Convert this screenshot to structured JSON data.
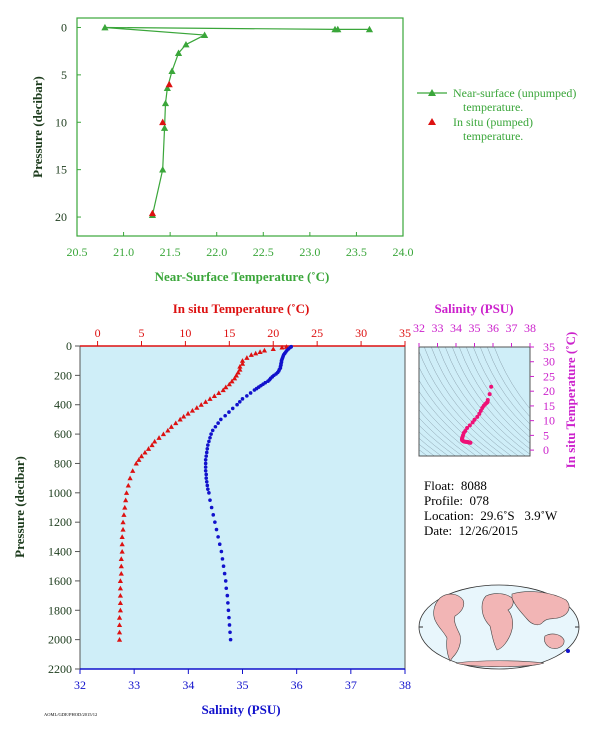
{
  "top_chart": {
    "xlabel": "Near-Surface Temperature (˚C)",
    "ylabel": "Pressure (decibar)",
    "legend": {
      "unpumped_line1": "Near-surface (unpumped)",
      "unpumped_line2": "temperature.",
      "pumped_line1": "In situ (pumped)",
      "pumped_line2": "temperature."
    },
    "color_unpumped": "#3aa63a",
    "color_pumped": "#dd1111"
  },
  "main_chart": {
    "top_axis_label": "In situ Temperature (˚C)",
    "bottom_axis_label": "Salinity (PSU)",
    "ylabel": "Pressure (decibar)",
    "color_temperature": "#dd1111",
    "color_salinity": "#1111cc"
  },
  "ts_chart": {
    "top_axis_label": "Salinity (PSU)",
    "right_axis_label": "In situ Temperature (˚C)",
    "color": "#cc22cc"
  },
  "info": {
    "float": "Float:  8088",
    "profile": "Profile:  078",
    "location": "Location:  29.6˚S   3.9˚W",
    "date": "Date:  12/26/2015"
  },
  "corner_code": "AOML/GDE/PHOD/2015/12",
  "chart_data": [
    {
      "type": "line",
      "name": "near_surface",
      "xlabel": "Near-Surface Temperature (˚C)",
      "ylabel": "Pressure (decibar)",
      "xlim": [
        20.5,
        24.0
      ],
      "ylim": [
        22,
        -1
      ],
      "xticks": [
        20.5,
        21.0,
        21.5,
        22.0,
        22.5,
        23.0,
        23.5,
        24.0
      ],
      "yticks": [
        0,
        5,
        10,
        15,
        20
      ],
      "series": [
        {
          "name": "Near-surface (unpumped) temperature.",
          "marker": "triangle",
          "x": [
            23.64,
            23.3,
            23.27,
            20.8,
            21.87,
            21.67,
            21.59,
            21.52,
            21.47,
            21.45,
            21.44,
            21.42,
            21.31
          ],
          "y": [
            0.2,
            0.2,
            0.2,
            0.0,
            0.8,
            1.8,
            2.7,
            4.6,
            6.4,
            8.0,
            10.6,
            15.0,
            19.8
          ]
        },
        {
          "name": "In situ (pumped) temperature.",
          "marker": "triangle",
          "x": [
            21.49,
            21.42,
            21.31
          ],
          "y": [
            6.0,
            10.0,
            19.6
          ]
        }
      ]
    },
    {
      "type": "line",
      "name": "profile",
      "ylabel": "Pressure (decibar)",
      "ylim": [
        2200,
        0
      ],
      "yticks": [
        0,
        200,
        400,
        600,
        800,
        1000,
        1200,
        1400,
        1600,
        1800,
        2000,
        2200
      ],
      "temperature_axis": {
        "label": "In situ Temperature (˚C)",
        "lim": [
          -2,
          35
        ],
        "ticks": [
          0,
          5,
          10,
          15,
          20,
          25,
          30,
          35
        ]
      },
      "salinity_axis": {
        "label": "Salinity (PSU)",
        "lim": [
          32,
          38
        ],
        "ticks": [
          32,
          33,
          34,
          35,
          36,
          37,
          38
        ]
      },
      "series": [
        {
          "name": "In situ Temperature",
          "marker": "triangle",
          "pressure": [
            5,
            10,
            20,
            30,
            40,
            50,
            60,
            80,
            100,
            120,
            140,
            160,
            180,
            200,
            220,
            240,
            260,
            280,
            300,
            320,
            340,
            360,
            380,
            400,
            420,
            440,
            460,
            480,
            500,
            525,
            550,
            575,
            600,
            625,
            650,
            675,
            700,
            725,
            750,
            775,
            800,
            850,
            900,
            950,
            1000,
            1050,
            1100,
            1150,
            1200,
            1250,
            1300,
            1350,
            1400,
            1450,
            1500,
            1550,
            1600,
            1650,
            1700,
            1750,
            1800,
            1850,
            1900,
            1950,
            2000
          ],
          "values": [
            21.5,
            21.0,
            20.0,
            19.0,
            18.5,
            18.0,
            17.5,
            17.0,
            16.5,
            16.5,
            16.2,
            16.2,
            16.0,
            15.8,
            15.6,
            15.3,
            15.0,
            14.6,
            14.3,
            13.8,
            13.3,
            12.8,
            12.3,
            11.8,
            11.3,
            10.8,
            10.3,
            9.8,
            9.4,
            8.9,
            8.4,
            8.0,
            7.5,
            7.0,
            6.5,
            6.2,
            5.8,
            5.4,
            5.0,
            4.7,
            4.4,
            4.0,
            3.7,
            3.5,
            3.3,
            3.2,
            3.1,
            3.0,
            2.9,
            2.9,
            2.8,
            2.8,
            2.8,
            2.7,
            2.7,
            2.7,
            2.6,
            2.6,
            2.6,
            2.6,
            2.6,
            2.5,
            2.5,
            2.5,
            2.5
          ]
        },
        {
          "name": "Salinity",
          "marker": "dot",
          "pressure": [
            5,
            10,
            20,
            30,
            40,
            50,
            60,
            70,
            80,
            90,
            100,
            110,
            120,
            130,
            140,
            150,
            160,
            170,
            180,
            190,
            200,
            210,
            220,
            230,
            240,
            250,
            260,
            270,
            280,
            290,
            300,
            320,
            340,
            360,
            380,
            400,
            425,
            450,
            475,
            500,
            525,
            550,
            575,
            600,
            625,
            650,
            675,
            700,
            725,
            750,
            775,
            800,
            825,
            850,
            875,
            900,
            925,
            950,
            975,
            1000,
            1050,
            1100,
            1150,
            1200,
            1250,
            1300,
            1350,
            1400,
            1450,
            1500,
            1550,
            1600,
            1650,
            1700,
            1750,
            1800,
            1850,
            1900,
            1950,
            2000
          ],
          "values": [
            35.9,
            35.88,
            35.85,
            35.82,
            35.8,
            35.78,
            35.76,
            35.75,
            35.74,
            35.73,
            35.72,
            35.72,
            35.71,
            35.71,
            35.7,
            35.7,
            35.68,
            35.67,
            35.65,
            35.62,
            35.58,
            35.55,
            35.52,
            35.5,
            35.47,
            35.42,
            35.38,
            35.34,
            35.3,
            35.26,
            35.22,
            35.15,
            35.08,
            35.0,
            34.95,
            34.9,
            34.82,
            34.75,
            34.68,
            34.6,
            34.55,
            34.5,
            34.45,
            34.42,
            34.4,
            34.38,
            34.36,
            34.35,
            34.34,
            34.33,
            34.32,
            34.32,
            34.32,
            34.32,
            34.33,
            34.33,
            34.34,
            34.35,
            34.36,
            34.38,
            34.4,
            34.43,
            34.46,
            34.49,
            34.52,
            34.55,
            34.58,
            34.61,
            34.63,
            34.65,
            34.67,
            34.69,
            34.7,
            34.72,
            34.73,
            34.74,
            34.75,
            34.76,
            34.77,
            34.78
          ]
        }
      ]
    },
    {
      "type": "scatter",
      "name": "ts_diagram",
      "xlabel": "Salinity (PSU)",
      "ylabel": "In situ Temperature (˚C)",
      "xlim": [
        32,
        38
      ],
      "ylim": [
        -2,
        35
      ],
      "xticks": [
        32,
        33,
        34,
        35,
        36,
        37,
        38
      ],
      "yticks": [
        0,
        5,
        10,
        15,
        20,
        25,
        30,
        35
      ],
      "x": [
        35.9,
        35.82,
        35.72,
        35.7,
        35.65,
        35.58,
        35.5,
        35.42,
        35.34,
        35.26,
        35.15,
        35.0,
        34.9,
        34.75,
        34.6,
        34.5,
        34.42,
        34.38,
        34.35,
        34.33,
        34.32,
        34.33,
        34.36,
        34.4,
        34.46,
        34.52,
        34.58,
        34.63,
        34.67,
        34.7,
        34.73,
        34.76,
        34.78
      ],
      "y": [
        21.5,
        19.0,
        17.0,
        16.3,
        16.0,
        15.6,
        15.0,
        14.3,
        13.3,
        12.3,
        11.3,
        10.3,
        9.4,
        8.4,
        7.5,
        6.5,
        5.8,
        5.0,
        4.4,
        4.0,
        3.7,
        3.4,
        3.2,
        3.0,
        2.9,
        2.8,
        2.8,
        2.7,
        2.7,
        2.6,
        2.6,
        2.5,
        2.5
      ]
    }
  ]
}
